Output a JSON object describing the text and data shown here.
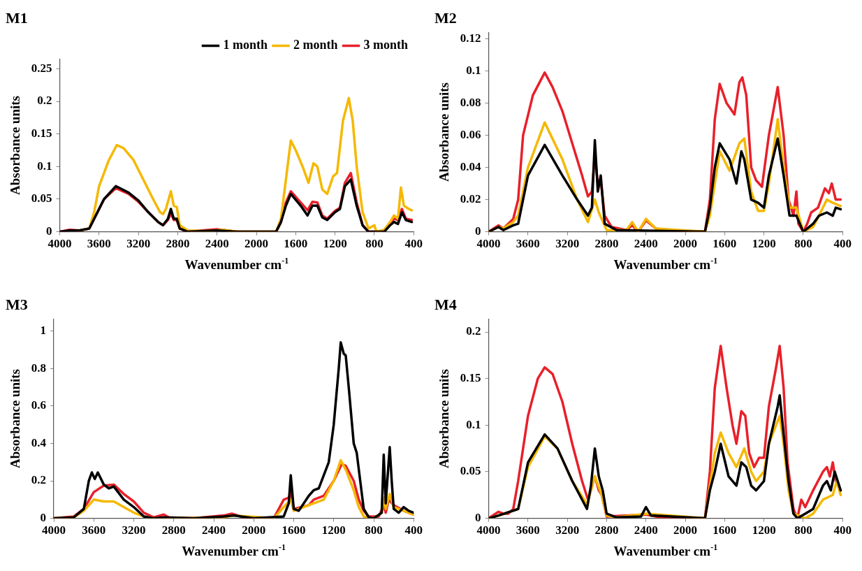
{
  "chart_data": [
    {
      "type": "line",
      "title": "M1",
      "xlabel": "Wavenumber cm$^{-1}$",
      "ylabel": "Absorbance units",
      "xlim": [
        4000,
        400
      ],
      "xticks": [
        4000,
        3600,
        3200,
        2800,
        2400,
        2000,
        1600,
        1200,
        800,
        400
      ],
      "ylim": [
        0,
        0.265
      ],
      "yticks": [
        0,
        0.05,
        0.1,
        0.15,
        0.2,
        0.25
      ],
      "grid": false,
      "legend": "top right",
      "marker": "none",
      "line_style": "solid",
      "series": [
        {
          "name": "1 month",
          "color": "#000000",
          "x": [
            4000,
            3900,
            3800,
            3700,
            3650,
            3550,
            3430,
            3300,
            3200,
            3100,
            3000,
            2950,
            2900,
            2870,
            2840,
            2810,
            2780,
            2700,
            2400,
            2200,
            1800,
            1750,
            1700,
            1650,
            1550,
            1480,
            1430,
            1380,
            1330,
            1280,
            1200,
            1150,
            1100,
            1040,
            980,
            920,
            860,
            700,
            640,
            600,
            560,
            520,
            480,
            420
          ],
          "values": [
            0,
            0.002,
            0.002,
            0.005,
            0.02,
            0.05,
            0.07,
            0.06,
            0.048,
            0.03,
            0.015,
            0.01,
            0.02,
            0.035,
            0.02,
            0.02,
            0.005,
            0,
            0.002,
            0,
            0,
            0.015,
            0.04,
            0.058,
            0.04,
            0.025,
            0.04,
            0.04,
            0.022,
            0.018,
            0.03,
            0.035,
            0.07,
            0.08,
            0.04,
            0.01,
            0,
            0,
            0.01,
            0.015,
            0.012,
            0.03,
            0.018,
            0.015
          ]
        },
        {
          "name": "2 month",
          "color": "#f5b800",
          "x": [
            3800,
            3700,
            3650,
            3600,
            3500,
            3420,
            3350,
            3250,
            3150,
            3050,
            2980,
            2950,
            2920,
            2870,
            2840,
            2810,
            2780,
            2700,
            2500,
            2350,
            2200,
            1800,
            1750,
            1700,
            1650,
            1600,
            1530,
            1470,
            1420,
            1380,
            1330,
            1280,
            1220,
            1180,
            1120,
            1060,
            1020,
            980,
            920,
            860,
            800,
            780,
            700,
            640,
            600,
            560,
            530,
            500,
            450,
            420
          ],
          "values": [
            0.002,
            0.005,
            0.03,
            0.07,
            0.11,
            0.133,
            0.128,
            0.11,
            0.08,
            0.05,
            0.03,
            0.027,
            0.035,
            0.062,
            0.04,
            0.038,
            0.01,
            0.002,
            0.001,
            0.003,
            0,
            0,
            0.02,
            0.08,
            0.14,
            0.125,
            0.1,
            0.075,
            0.105,
            0.1,
            0.065,
            0.058,
            0.085,
            0.09,
            0.17,
            0.205,
            0.17,
            0.1,
            0.03,
            0.005,
            0.01,
            0,
            0.003,
            0.015,
            0.025,
            0.02,
            0.068,
            0.04,
            0.035,
            0.033
          ]
        },
        {
          "name": "3 month",
          "color": "#e8202a",
          "x": [
            4000,
            3900,
            3800,
            3700,
            3650,
            3550,
            3430,
            3300,
            3200,
            3100,
            3000,
            2950,
            2900,
            2870,
            2840,
            2810,
            2780,
            2700,
            2400,
            2200,
            1800,
            1750,
            1700,
            1650,
            1550,
            1480,
            1430,
            1380,
            1330,
            1280,
            1200,
            1150,
            1100,
            1040,
            980,
            920,
            860,
            700,
            640,
            600,
            560,
            520,
            480,
            420
          ],
          "values": [
            0,
            0.003,
            0.002,
            0.005,
            0.02,
            0.05,
            0.067,
            0.058,
            0.046,
            0.03,
            0.015,
            0.01,
            0.018,
            0.028,
            0.018,
            0.018,
            0.005,
            0,
            0.004,
            0,
            0,
            0.015,
            0.045,
            0.062,
            0.045,
            0.033,
            0.046,
            0.045,
            0.025,
            0.02,
            0.032,
            0.037,
            0.075,
            0.09,
            0.045,
            0.01,
            0,
            0,
            0.012,
            0.02,
            0.018,
            0.035,
            0.02,
            0.018
          ]
        }
      ]
    },
    {
      "type": "line",
      "title": "M2",
      "xlabel": "Wavenumber cm$^{-1}$",
      "ylabel": "Absorbance units",
      "xlim": [
        4000,
        400
      ],
      "xticks": [
        4000,
        3600,
        3200,
        2800,
        2400,
        2000,
        1600,
        1200,
        800,
        400
      ],
      "ylim": [
        0,
        0.124
      ],
      "yticks": [
        0,
        0.02,
        0.04,
        0.06,
        0.08,
        0.1,
        0.12
      ],
      "grid": false,
      "marker": "none",
      "line_style": "solid",
      "series": [
        {
          "color": "#000000",
          "x": [
            4000,
            3900,
            3850,
            3750,
            3700,
            3600,
            3430,
            3250,
            3100,
            2990,
            2950,
            2920,
            2890,
            2860,
            2820,
            2700,
            1800,
            1750,
            1700,
            1650,
            1550,
            1480,
            1430,
            1400,
            1330,
            1260,
            1200,
            1150,
            1060,
            1000,
            940,
            870,
            800,
            700,
            640,
            560,
            500,
            470,
            420
          ],
          "values": [
            0,
            0.003,
            0.001,
            0.004,
            0.005,
            0.035,
            0.054,
            0.035,
            0.02,
            0.01,
            0.015,
            0.057,
            0.025,
            0.035,
            0.005,
            0.001,
            0,
            0.015,
            0.04,
            0.055,
            0.045,
            0.03,
            0.05,
            0.045,
            0.02,
            0.018,
            0.015,
            0.035,
            0.058,
            0.035,
            0.01,
            0.01,
            0,
            0.005,
            0.01,
            0.012,
            0.01,
            0.015,
            0.014
          ]
        },
        {
          "color": "#f5b800",
          "x": [
            4000,
            3900,
            3850,
            3750,
            3700,
            3600,
            3430,
            3250,
            3100,
            2990,
            2920,
            2880,
            2800,
            2600,
            2540,
            2480,
            2400,
            2300,
            1800,
            1750,
            1650,
            1550,
            1450,
            1400,
            1330,
            1260,
            1200,
            1150,
            1060,
            1000,
            940,
            870,
            800,
            700,
            640,
            560,
            500,
            420
          ],
          "values": [
            0,
            0.003,
            0.002,
            0.006,
            0.01,
            0.04,
            0.068,
            0.045,
            0.02,
            0.006,
            0.02,
            0.012,
            0.001,
            0.001,
            0.006,
            0,
            0.008,
            0.002,
            0,
            0.01,
            0.05,
            0.038,
            0.055,
            0.058,
            0.025,
            0.013,
            0.013,
            0.03,
            0.07,
            0.04,
            0.015,
            0.015,
            0,
            0.003,
            0.01,
            0.02,
            0.018,
            0.016
          ]
        },
        {
          "color": "#e8202a",
          "x": [
            4000,
            3900,
            3850,
            3750,
            3700,
            3650,
            3550,
            3430,
            3350,
            3250,
            3150,
            3050,
            2990,
            2950,
            2920,
            2890,
            2860,
            2820,
            2750,
            2600,
            2540,
            2480,
            2400,
            2300,
            2200,
            1800,
            1750,
            1700,
            1650,
            1580,
            1500,
            1450,
            1420,
            1380,
            1330,
            1280,
            1220,
            1150,
            1060,
            1000,
            950,
            900,
            870,
            850,
            800,
            760,
            720,
            650,
            580,
            540,
            510,
            470,
            420
          ],
          "values": [
            0,
            0.004,
            0.002,
            0.008,
            0.02,
            0.06,
            0.085,
            0.099,
            0.09,
            0.075,
            0.055,
            0.035,
            0.022,
            0.025,
            0.048,
            0.03,
            0.032,
            0.01,
            0.003,
            0.001,
            0.004,
            0,
            0.007,
            0.002,
            0.001,
            0,
            0.02,
            0.07,
            0.092,
            0.08,
            0.073,
            0.093,
            0.096,
            0.085,
            0.04,
            0.032,
            0.028,
            0.06,
            0.09,
            0.06,
            0.02,
            0.01,
            0.025,
            0.005,
            0,
            0.005,
            0.012,
            0.015,
            0.027,
            0.024,
            0.03,
            0.02,
            0.02
          ]
        }
      ]
    },
    {
      "type": "line",
      "title": "M3",
      "xlabel": "Wavenumber cm$^{-1}$",
      "ylabel": "Absorbance units",
      "xlim": [
        4000,
        400
      ],
      "xticks": [
        4000,
        3600,
        3200,
        2800,
        2400,
        2000,
        1600,
        1200,
        800,
        400
      ],
      "ylim": [
        0,
        1.065
      ],
      "yticks": [
        0,
        0.2,
        0.4,
        0.6,
        0.8,
        1
      ],
      "grid": false,
      "marker": "none",
      "line_style": "solid",
      "series": [
        {
          "color": "#000000",
          "x": [
            4000,
            3800,
            3700,
            3650,
            3620,
            3590,
            3560,
            3500,
            3450,
            3400,
            3300,
            3200,
            3100,
            3000,
            2900,
            2600,
            2300,
            2200,
            2000,
            1700,
            1650,
            1630,
            1600,
            1550,
            1450,
            1400,
            1350,
            1250,
            1200,
            1150,
            1130,
            1100,
            1080,
            1050,
            1000,
            970,
            900,
            850,
            800,
            720,
            700,
            680,
            640,
            620,
            600,
            550,
            500,
            450,
            400
          ],
          "values": [
            0,
            0.005,
            0.05,
            0.2,
            0.245,
            0.21,
            0.245,
            0.18,
            0.16,
            0.17,
            0.1,
            0.06,
            0.01,
            0,
            0.005,
            0,
            0.01,
            0.015,
            0,
            0.01,
            0.08,
            0.23,
            0.05,
            0.04,
            0.12,
            0.15,
            0.16,
            0.3,
            0.5,
            0.8,
            0.94,
            0.88,
            0.87,
            0.7,
            0.4,
            0.35,
            0.05,
            0.005,
            0,
            0.03,
            0.34,
            0.08,
            0.38,
            0.2,
            0.05,
            0.03,
            0.06,
            0.04,
            0.03
          ]
        },
        {
          "color": "#f5b800",
          "x": [
            4000,
            3800,
            3700,
            3600,
            3500,
            3400,
            3300,
            3200,
            3100,
            3000,
            2300,
            2220,
            1800,
            1700,
            1630,
            1600,
            1400,
            1300,
            1200,
            1130,
            1080,
            1000,
            950,
            900,
            800,
            720,
            700,
            680,
            640,
            600,
            500,
            400
          ],
          "values": [
            0,
            0.005,
            0.04,
            0.1,
            0.09,
            0.09,
            0.06,
            0.03,
            0.01,
            0,
            0.005,
            0.015,
            0,
            0.06,
            0.1,
            0.04,
            0.08,
            0.1,
            0.2,
            0.31,
            0.26,
            0.15,
            0.06,
            0.01,
            0,
            0.03,
            0.11,
            0.05,
            0.13,
            0.06,
            0.04,
            0.02
          ]
        },
        {
          "color": "#e8202a",
          "x": [
            4000,
            3800,
            3700,
            3600,
            3500,
            3400,
            3300,
            3200,
            3100,
            3000,
            2900,
            2850,
            2600,
            2300,
            2220,
            2100,
            1800,
            1700,
            1650,
            1630,
            1600,
            1450,
            1400,
            1300,
            1200,
            1120,
            1080,
            1000,
            950,
            900,
            850,
            750,
            700,
            680,
            650,
            600,
            500,
            400
          ],
          "values": [
            0,
            0.01,
            0.05,
            0.14,
            0.175,
            0.18,
            0.13,
            0.09,
            0.03,
            0.005,
            0.02,
            0.005,
            0,
            0.015,
            0.025,
            0.005,
            0,
            0.1,
            0.11,
            0.14,
            0.05,
            0.07,
            0.1,
            0.12,
            0.2,
            0.29,
            0.28,
            0.2,
            0.1,
            0.04,
            0.01,
            0.01,
            0.07,
            0.03,
            0.1,
            0.07,
            0.04,
            0.02
          ]
        }
      ]
    },
    {
      "type": "line",
      "title": "M4",
      "xlabel": "Wavenumber cm$^{-1}$",
      "ylabel": "Absorbance units",
      "xlim": [
        4000,
        400
      ],
      "xticks": [
        4000,
        3600,
        3200,
        2800,
        2400,
        2000,
        1600,
        1200,
        800,
        400
      ],
      "ylim": [
        0,
        0.214
      ],
      "yticks": [
        0,
        0.05,
        0.1,
        0.15,
        0.2
      ],
      "grid": false,
      "marker": "none",
      "line_style": "solid",
      "series": [
        {
          "color": "#000000",
          "x": [
            4000,
            3900,
            3700,
            3600,
            3430,
            3300,
            3150,
            3000,
            2960,
            2920,
            2880,
            2840,
            2800,
            2700,
            2450,
            2400,
            2350,
            1800,
            1750,
            1700,
            1640,
            1560,
            1480,
            1430,
            1380,
            1330,
            1280,
            1200,
            1150,
            1060,
            1040,
            1000,
            950,
            900,
            860,
            780,
            700,
            600,
            560,
            520,
            480,
            420
          ],
          "values": [
            0,
            0.003,
            0.01,
            0.06,
            0.09,
            0.075,
            0.04,
            0.01,
            0.035,
            0.075,
            0.045,
            0.03,
            0.005,
            0.001,
            0.002,
            0.012,
            0.003,
            0,
            0.03,
            0.05,
            0.08,
            0.045,
            0.035,
            0.06,
            0.055,
            0.035,
            0.03,
            0.04,
            0.08,
            0.12,
            0.132,
            0.09,
            0.04,
            0.005,
            0,
            0.005,
            0.01,
            0.035,
            0.04,
            0.03,
            0.05,
            0.03
          ]
        },
        {
          "color": "#f5b800",
          "x": [
            4000,
            3900,
            3700,
            3600,
            3430,
            3300,
            3150,
            3000,
            2920,
            2850,
            2800,
            2700,
            2400,
            1800,
            1700,
            1640,
            1560,
            1480,
            1400,
            1330,
            1280,
            1200,
            1150,
            1040,
            1000,
            950,
            900,
            780,
            700,
            600,
            500,
            460,
            420
          ],
          "values": [
            0,
            0.003,
            0.01,
            0.055,
            0.088,
            0.075,
            0.04,
            0.015,
            0.045,
            0.025,
            0.003,
            0.001,
            0.005,
            0,
            0.07,
            0.092,
            0.07,
            0.055,
            0.075,
            0.05,
            0.04,
            0.05,
            0.08,
            0.11,
            0.08,
            0.03,
            0.005,
            0,
            0.005,
            0.02,
            0.025,
            0.04,
            0.025
          ]
        },
        {
          "color": "#e8202a",
          "x": [
            4000,
            3900,
            3850,
            3800,
            3750,
            3700,
            3600,
            3500,
            3430,
            3350,
            3250,
            3150,
            3050,
            2990,
            2960,
            2920,
            2880,
            2850,
            2800,
            2400,
            2200,
            1800,
            1750,
            1700,
            1640,
            1580,
            1520,
            1480,
            1430,
            1390,
            1350,
            1300,
            1250,
            1200,
            1150,
            1080,
            1040,
            1000,
            960,
            900,
            860,
            820,
            780,
            700,
            600,
            560,
            530,
            500,
            470,
            420
          ],
          "values": [
            0,
            0.007,
            0.005,
            0.005,
            0.01,
            0.04,
            0.11,
            0.15,
            0.162,
            0.155,
            0.125,
            0.08,
            0.04,
            0.02,
            0.03,
            0.045,
            0.03,
            0.025,
            0.002,
            0.004,
            0,
            0,
            0.05,
            0.14,
            0.185,
            0.14,
            0.1,
            0.08,
            0.115,
            0.11,
            0.07,
            0.055,
            0.065,
            0.065,
            0.12,
            0.16,
            0.185,
            0.14,
            0.06,
            0.01,
            0,
            0.02,
            0.012,
            0.03,
            0.05,
            0.055,
            0.045,
            0.06,
            0.04,
            0.03
          ]
        }
      ]
    }
  ]
}
